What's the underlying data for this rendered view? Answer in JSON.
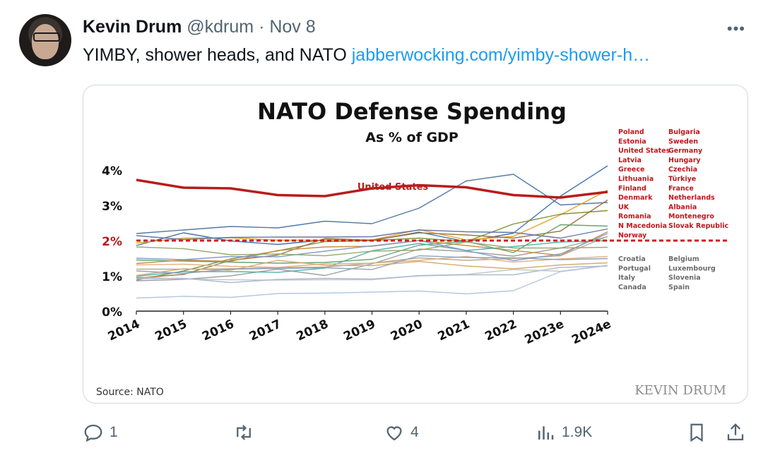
{
  "tweet": {
    "author_name": "Kevin Drum",
    "handle": "@kdrum",
    "separator": "·",
    "date": "Nov 8",
    "more_label": "•••",
    "text": "YIMBY, shower heads, and NATO ",
    "link_text": "jabberwocking.com/yimby-shower-h…"
  },
  "actions": {
    "reply_count": "1",
    "retweet_count": "",
    "like_count": "4",
    "views_count": "1.9K"
  },
  "chart_data": {
    "type": "line",
    "title": "NATO Defense Spending",
    "subtitle": "As % of GDP",
    "x": [
      "2014",
      "2015",
      "2016",
      "2017",
      "2018",
      "2019",
      "2020",
      "2021",
      "2022",
      "2023e",
      "2024e"
    ],
    "yticks": [
      "4%",
      "3%",
      "2%",
      "1%",
      "0%"
    ],
    "ylim": [
      0,
      4.2
    ],
    "highlight_label": "United States",
    "threshold": 2.0,
    "series": [
      {
        "name": "United States",
        "color": "#b81c1c",
        "bold": true,
        "values": [
          3.72,
          3.5,
          3.48,
          3.29,
          3.26,
          3.48,
          3.57,
          3.51,
          3.29,
          3.22,
          3.38
        ]
      },
      {
        "name": "Poland",
        "color": "#3b6ea8",
        "values": [
          1.86,
          2.22,
          1.99,
          1.89,
          2.02,
          2.0,
          2.24,
          1.97,
          2.21,
          3.26,
          4.12
        ]
      },
      {
        "name": "Greece",
        "color": "#4a73a0",
        "values": [
          2.2,
          2.3,
          2.4,
          2.36,
          2.55,
          2.48,
          2.92,
          3.69,
          3.88,
          3.01,
          3.08
        ]
      },
      {
        "name": "Estonia",
        "color": "#e3a21a",
        "values": [
          1.93,
          2.07,
          2.08,
          2.01,
          2.01,
          2.02,
          2.31,
          2.02,
          2.12,
          2.73,
          3.43
        ]
      },
      {
        "name": "Lithuania",
        "color": "#7a8c2e",
        "values": [
          0.88,
          1.14,
          1.48,
          1.71,
          1.97,
          2.0,
          2.07,
          1.97,
          2.47,
          2.75,
          2.85
        ]
      },
      {
        "name": "Latvia",
        "color": "#9a7040",
        "values": [
          0.94,
          1.04,
          1.44,
          1.59,
          2.06,
          2.01,
          2.22,
          2.16,
          2.07,
          2.27,
          3.15
        ]
      },
      {
        "name": "Finland",
        "color": "#5fa06a",
        "values": [
          1.45,
          1.42,
          1.39,
          1.36,
          1.38,
          1.47,
          1.87,
          1.98,
          1.66,
          2.45,
          2.41
        ]
      },
      {
        "name": "UK",
        "color": "#6070a0",
        "values": [
          2.14,
          2.03,
          2.09,
          2.1,
          2.1,
          2.11,
          2.3,
          2.25,
          2.23,
          2.07,
          2.33
        ]
      },
      {
        "name": "Hungary",
        "color": "#9b9b9b",
        "values": [
          0.86,
          0.9,
          1.0,
          1.19,
          1.01,
          1.34,
          1.76,
          1.69,
          1.56,
          1.79,
          2.11
        ]
      },
      {
        "name": "Romania",
        "color": "#c58b3b",
        "values": [
          1.35,
          1.45,
          1.41,
          1.72,
          1.82,
          1.84,
          2.0,
          1.86,
          1.72,
          1.58,
          2.25
        ]
      },
      {
        "name": "Slovak Republic",
        "color": "#4fb0a8",
        "values": [
          0.99,
          1.12,
          1.12,
          1.1,
          1.22,
          1.71,
          1.92,
          1.72,
          1.83,
          1.96,
          2.0
        ]
      },
      {
        "name": "Germany",
        "color": "#b6a58a",
        "values": [
          1.19,
          1.19,
          1.2,
          1.23,
          1.25,
          1.36,
          1.51,
          1.44,
          1.49,
          1.57,
          2.12
        ]
      },
      {
        "name": "Norway",
        "color": "#7e9ac8",
        "values": [
          1.5,
          1.46,
          1.55,
          1.54,
          1.7,
          1.85,
          2.0,
          1.72,
          1.43,
          1.62,
          2.2
        ]
      },
      {
        "name": "Belgium",
        "color": "#c4c4c4",
        "values": [
          0.97,
          0.91,
          0.89,
          0.88,
          0.89,
          0.89,
          1.01,
          1.04,
          1.18,
          1.13,
          1.3
        ]
      },
      {
        "name": "Spain",
        "color": "#a9b8d0",
        "values": [
          0.92,
          0.93,
          0.81,
          0.9,
          0.93,
          0.91,
          1.0,
          1.03,
          1.03,
          1.24,
          1.28
        ]
      },
      {
        "name": "Luxembourg",
        "color": "#b0c4de",
        "values": [
          0.37,
          0.42,
          0.39,
          0.5,
          0.51,
          0.54,
          0.57,
          0.49,
          0.58,
          1.12,
          1.29
        ]
      },
      {
        "name": "Canada",
        "color": "#d4a86a",
        "values": [
          1.01,
          1.2,
          1.16,
          1.44,
          1.3,
          1.29,
          1.41,
          1.28,
          1.2,
          1.31,
          1.37
        ]
      },
      {
        "name": "Portugal",
        "color": "#e0b080",
        "values": [
          1.31,
          1.33,
          1.27,
          1.24,
          1.34,
          1.36,
          1.44,
          1.55,
          1.39,
          1.48,
          1.55
        ]
      },
      {
        "name": "Italy",
        "color": "#8aa0b8",
        "values": [
          1.14,
          1.07,
          1.19,
          1.21,
          1.23,
          1.18,
          1.57,
          1.52,
          1.51,
          1.46,
          1.49
        ]
      },
      {
        "name": "Croatia",
        "color": "#94a86c",
        "values": [
          1.82,
          1.77,
          1.6,
          1.62,
          1.57,
          1.7,
          1.73,
          1.96,
          1.79,
          1.79,
          1.81
        ]
      }
    ],
    "legend_red": [
      "Poland",
      "Estonia",
      "United States",
      "Latvia",
      "Greece",
      "Lithuania",
      "Finland",
      "Denmark",
      "UK",
      "Romania",
      "N Macedonia",
      "Norway",
      "Bulgaria",
      "Sweden",
      "Germany",
      "Hungary",
      "Czechia",
      "Türkiye",
      "France",
      "Netherlands",
      "Albania",
      "Montenegro",
      "Slovak Republic"
    ],
    "legend_gray": [
      "Croatia",
      "Portugal",
      "Italy",
      "Canada",
      "Belgium",
      "Luxembourg",
      "Slovenia",
      "Spain"
    ],
    "source": "Source: NATO",
    "watermark": "KEVIN DRUM",
    "colors": {
      "highlight": "#b81c1c",
      "threshold": "#cc1f1f",
      "legend_red": "#c0161b",
      "legend_gray": "#6b6b6b"
    }
  }
}
